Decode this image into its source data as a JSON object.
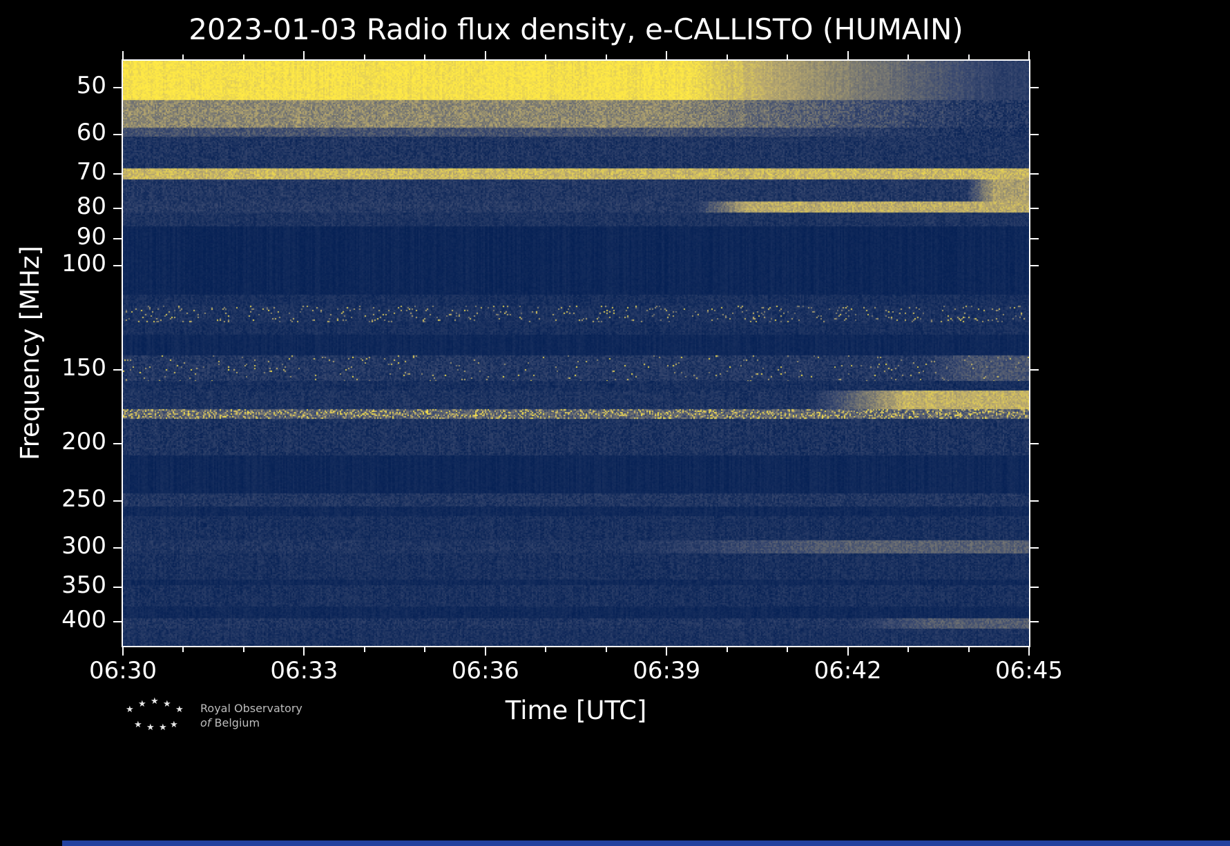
{
  "title": "2023-01-03 Radio flux density, e-CALLISTO (HUMAIN)",
  "axes": {
    "x_label": "Time [UTC]",
    "y_label": "Frequency [MHz]"
  },
  "footer": {
    "logo_line1": "Royal Observatory",
    "logo_line2_word1": "of",
    "logo_line2_word2": "Belgium"
  },
  "chart_data": {
    "type": "heatmap",
    "title": "2023-01-03 Radio flux density, e-CALLISTO (HUMAIN)",
    "xlabel": "Time [UTC]",
    "ylabel": "Frequency [MHz]",
    "x_ticks": [
      "06:30",
      "06:33",
      "06:36",
      "06:39",
      "06:42",
      "06:45"
    ],
    "x_minor_ticks_per_major": 3,
    "x_range_utc": [
      "06:30",
      "06:45"
    ],
    "y_scale": "log",
    "y_range_mhz": [
      45,
      440
    ],
    "y_ticks_mhz": [
      50,
      60,
      70,
      80,
      90,
      100,
      150,
      200,
      250,
      300,
      350,
      400
    ],
    "legend": "off",
    "grid": "off",
    "background_value": 0.04,
    "colormap": {
      "name": "cividis-like (dark blue to yellow)",
      "stops": [
        [
          0,
          "#062155"
        ],
        [
          0.3,
          "#3b4a70"
        ],
        [
          0.55,
          "#7b7a72"
        ],
        [
          0.78,
          "#bcab6d"
        ],
        [
          1,
          "#ffe945"
        ]
      ]
    },
    "bands": [
      {
        "name": "strong-emission-45-52",
        "f0": 45,
        "f1": 52.5,
        "base": 0.97,
        "noise": 0.06,
        "fade": {
          "from": 0.62,
          "to": 0.97,
          "end": 0.22
        }
      },
      {
        "name": "emission-52-58",
        "f0": 52.5,
        "f1": 58.5,
        "base": 0.62,
        "noise": 0.14,
        "fade": {
          "from": 0.6,
          "to": 0.95,
          "end": 0.16
        }
      },
      {
        "name": "line-59",
        "f0": 58.5,
        "f1": 60.5,
        "base": 0.34,
        "noise": 0.12,
        "fade": {
          "from": 0.6,
          "to": 0.95,
          "end": 0.12
        }
      },
      {
        "name": "herringbone-61-68",
        "f0": 60.5,
        "f1": 68.5,
        "base": 0.14,
        "noise": 0.1
      },
      {
        "name": "line-70",
        "f0": 68.5,
        "f1": 71.5,
        "base": 0.82,
        "noise": 0.1
      },
      {
        "name": "band-72-78",
        "f0": 71.5,
        "f1": 78,
        "base": 0.16,
        "noise": 0.1,
        "rise": {
          "from": 0.93,
          "end": 0.72,
          "ramp": 0.03
        }
      },
      {
        "name": "line-80-after-0639",
        "f0": 78,
        "f1": 81.5,
        "base": 0.18,
        "noise": 0.1,
        "rise": {
          "from": 0.63,
          "end": 0.78,
          "ramp": 0.06
        }
      },
      {
        "name": "band-82-86",
        "f0": 81.5,
        "f1": 86,
        "base": 0.13,
        "noise": 0.08
      },
      {
        "name": "quiet-86-112",
        "f0": 86,
        "f1": 112,
        "base": 0.04,
        "noise": 0.03
      },
      {
        "name": "band-112-117",
        "f0": 112,
        "f1": 117,
        "base": 0.1,
        "noise": 0.07
      },
      {
        "name": "dotted-117-125",
        "f0": 117,
        "f1": 125,
        "base": 0.12,
        "noise": 0.08,
        "dots": {
          "prob": 0.05,
          "min": 0.5,
          "max": 0.95
        }
      },
      {
        "name": "band-125-131",
        "f0": 125,
        "f1": 131,
        "base": 0.1,
        "noise": 0.07
      },
      {
        "name": "quiet-131-142",
        "f0": 131,
        "f1": 142,
        "base": 0.05,
        "noise": 0.03
      },
      {
        "name": "band-143-157-dotted",
        "f0": 142,
        "f1": 157,
        "base": 0.16,
        "noise": 0.11,
        "dots": {
          "prob": 0.02,
          "min": 0.55,
          "max": 1.0
        },
        "rise": {
          "from": 0.88,
          "end": 0.34,
          "ramp": 0.05
        }
      },
      {
        "name": "band-157-163",
        "f0": 157,
        "f1": 163,
        "base": 0.1,
        "noise": 0.08
      },
      {
        "name": "band-163-175-brightens-late",
        "f0": 163,
        "f1": 175,
        "base": 0.13,
        "noise": 0.09,
        "rise": {
          "from": 0.76,
          "end": 0.8,
          "ramp": 0.1
        }
      },
      {
        "name": "dotted-line-178",
        "f0": 175,
        "f1": 182,
        "base": 0.42,
        "noise": 0.18,
        "dots": {
          "prob": 0.22,
          "min": 0.75,
          "max": 1.0
        }
      },
      {
        "name": "band-182-210",
        "f0": 182,
        "f1": 210,
        "base": 0.13,
        "noise": 0.1
      },
      {
        "name": "quiet-210-243",
        "f0": 210,
        "f1": 243,
        "base": 0.05,
        "noise": 0.03
      },
      {
        "name": "line-250",
        "f0": 243,
        "f1": 256,
        "base": 0.15,
        "noise": 0.1
      },
      {
        "name": "quiet-256-266",
        "f0": 256,
        "f1": 266,
        "base": 0.06,
        "noise": 0.04
      },
      {
        "name": "band-266-292",
        "f0": 266,
        "f1": 292,
        "base": 0.11,
        "noise": 0.08
      },
      {
        "name": "line-300-brightens-late",
        "f0": 292,
        "f1": 307,
        "base": 0.14,
        "noise": 0.09,
        "rise": {
          "from": 0.56,
          "end": 0.42,
          "ramp": 0.25
        }
      },
      {
        "name": "band-307-340",
        "f0": 307,
        "f1": 340,
        "base": 0.11,
        "noise": 0.08
      },
      {
        "name": "quiet-340-348",
        "f0": 340,
        "f1": 348,
        "base": 0.06,
        "noise": 0.04
      },
      {
        "name": "band-348-378",
        "f0": 348,
        "f1": 378,
        "base": 0.11,
        "noise": 0.08
      },
      {
        "name": "quiet-378-396",
        "f0": 378,
        "f1": 396,
        "base": 0.06,
        "noise": 0.04
      },
      {
        "name": "line-405-brightens-late",
        "f0": 396,
        "f1": 412,
        "base": 0.14,
        "noise": 0.1,
        "rise": {
          "from": 0.8,
          "end": 0.4,
          "ramp": 0.1
        }
      },
      {
        "name": "band-412-440",
        "f0": 412,
        "f1": 440,
        "base": 0.12,
        "noise": 0.08
      }
    ]
  }
}
